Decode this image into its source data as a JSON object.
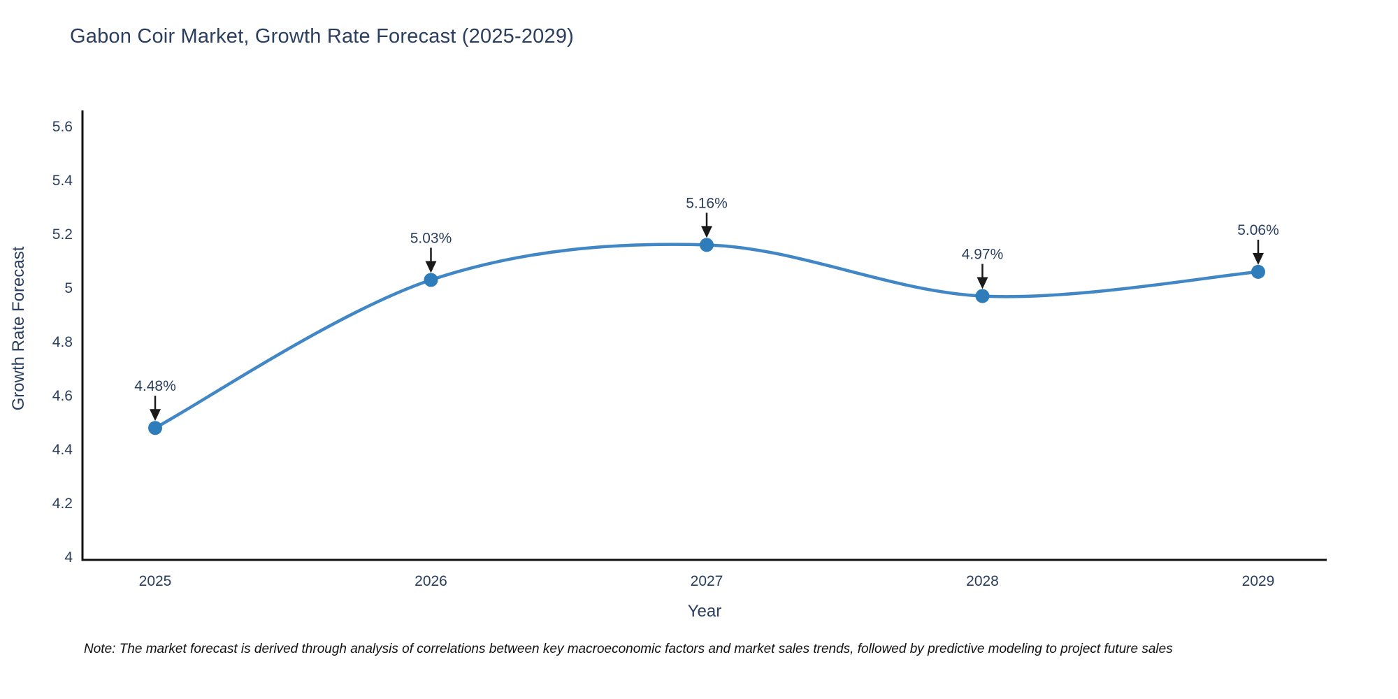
{
  "title": "Gabon Coir Market, Growth Rate Forecast (2025-2029)",
  "note": "Note: The market forecast is derived through analysis of correlations between key macroeconomic factors and market sales trends, followed by predictive modeling to project future sales",
  "chart_data": {
    "type": "line",
    "title": "Gabon Coir Market, Growth Rate Forecast (2025-2029)",
    "categories": [
      "2025",
      "2026",
      "2027",
      "2028",
      "2029"
    ],
    "series": [
      {
        "name": "Growth Rate Forecast",
        "values": [
          4.48,
          5.03,
          5.16,
          4.97,
          5.06
        ],
        "point_labels": [
          "4.48%",
          "5.03%",
          "5.16%",
          "4.97%",
          "5.06%"
        ]
      }
    ],
    "xlabel": "Year",
    "ylabel": "Growth Rate Forecast",
    "ylim": [
      4,
      5.6
    ],
    "ytick_labels": [
      "4",
      "4.2",
      "4.4",
      "4.6",
      "4.8",
      "5",
      "5.2",
      "5.4",
      "5.6"
    ],
    "line_shape": "spline",
    "grid": false,
    "legend": "none",
    "annotations": "value labels with down arrows above each point",
    "colors": {
      "line": "#4186c5",
      "marker": "#2f7cba",
      "axis": "#101010",
      "text": "#2a3f5f",
      "arrow": "#1a1a1a",
      "note_text": "#111111"
    }
  }
}
